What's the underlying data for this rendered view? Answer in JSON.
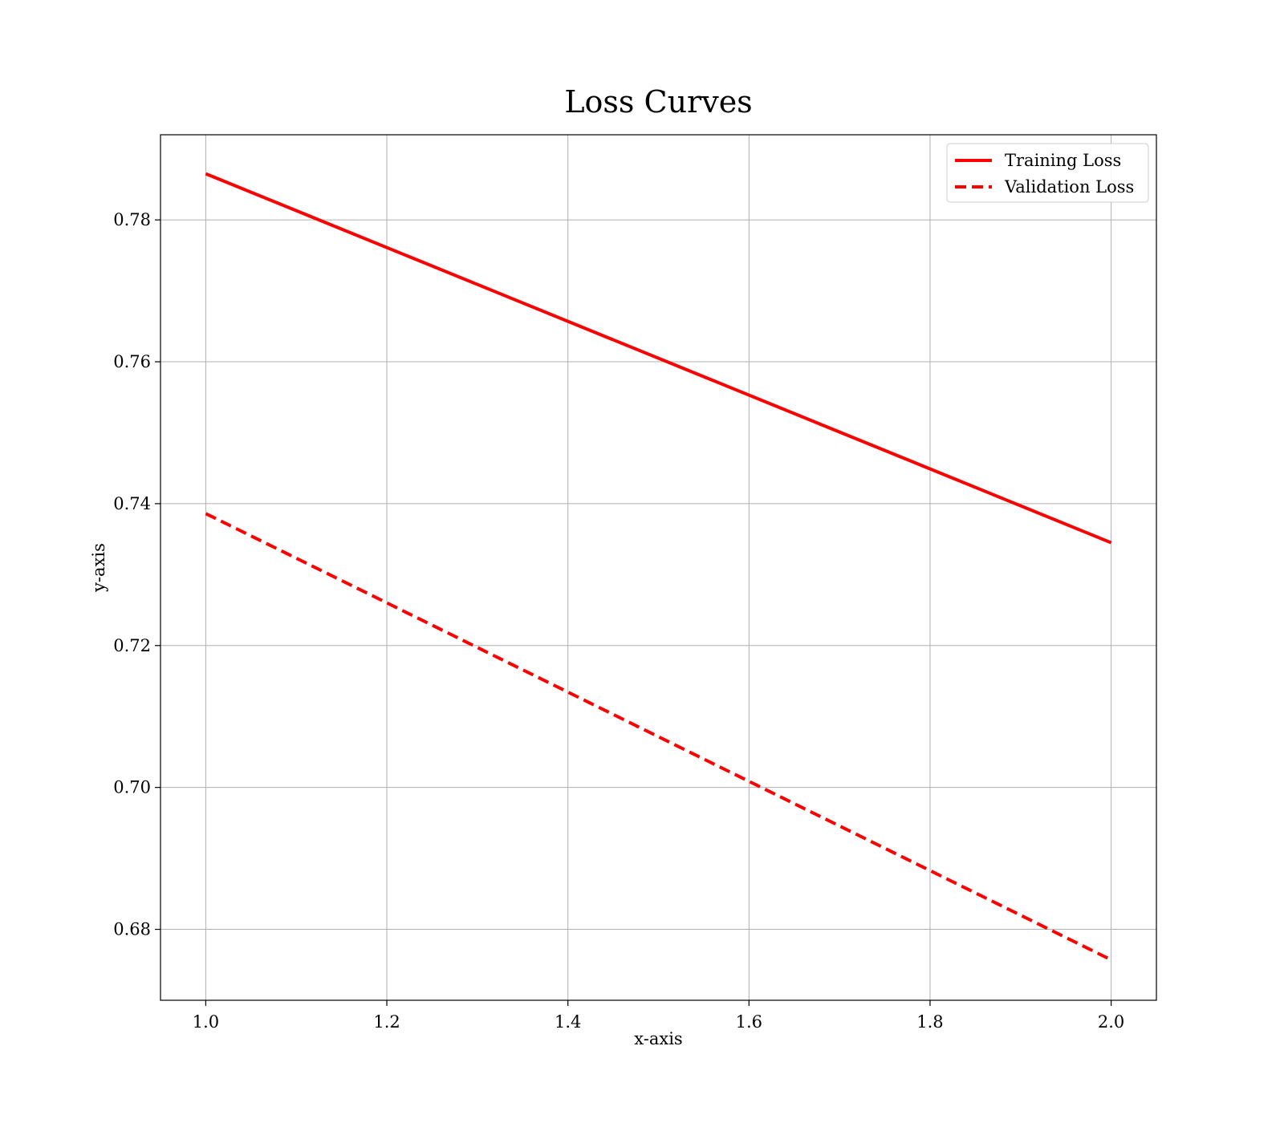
{
  "chart_data": {
    "type": "line",
    "title": "Loss Curves",
    "xlabel": "x-axis",
    "ylabel": "y-axis",
    "xlim": [
      0.95,
      2.05
    ],
    "ylim": [
      0.67,
      0.792
    ],
    "xticks": [
      1.0,
      1.2,
      1.4,
      1.6,
      1.8,
      2.0
    ],
    "xtick_labels": [
      "1.0",
      "1.2",
      "1.4",
      "1.6",
      "1.8",
      "2.0"
    ],
    "yticks": [
      0.68,
      0.7,
      0.72,
      0.74,
      0.76,
      0.78
    ],
    "ytick_labels": [
      "0.68",
      "0.70",
      "0.72",
      "0.74",
      "0.76",
      "0.78"
    ],
    "grid": true,
    "legend_position": "top-right",
    "series": [
      {
        "name": "Training Loss",
        "style": "solid",
        "color": "#ff0000",
        "x": [
          1.0,
          2.0
        ],
        "y": [
          0.7865,
          0.7345
        ]
      },
      {
        "name": "Validation Loss",
        "style": "dashed",
        "color": "#ff0000",
        "x": [
          1.0,
          2.0
        ],
        "y": [
          0.7386,
          0.6757
        ]
      }
    ]
  }
}
